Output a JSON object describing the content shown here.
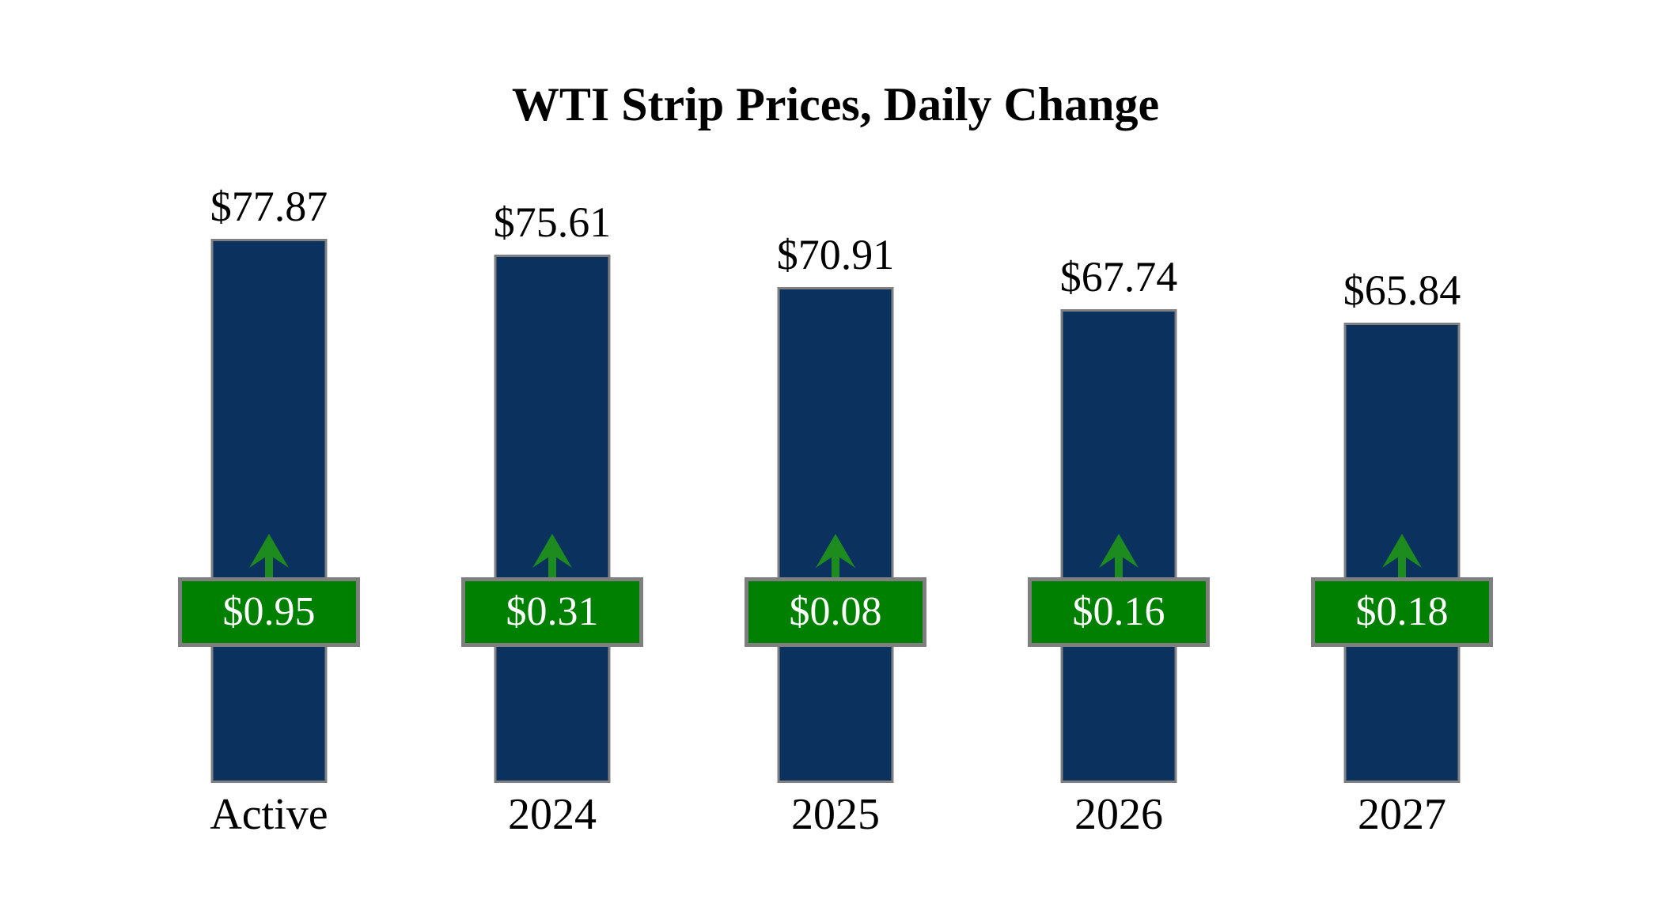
{
  "page": {
    "background": "#ffffff"
  },
  "chart_data": {
    "type": "bar",
    "title": "WTI Strip Prices, Daily Change",
    "categories": [
      "Active",
      "2024",
      "2025",
      "2026",
      "2027"
    ],
    "series": [
      {
        "name": "WTI strip price",
        "values": [
          77.87,
          75.61,
          70.91,
          67.74,
          65.84
        ],
        "labels": [
          "$77.87",
          "$75.61",
          "$70.91",
          "$67.74",
          "$65.84"
        ]
      },
      {
        "name": "Daily change",
        "values": [
          0.95,
          0.31,
          0.08,
          0.16,
          0.18
        ],
        "labels": [
          "$0.95",
          "$0.31",
          "$0.08",
          "$0.16",
          "$0.18"
        ],
        "direction": [
          "up",
          "up",
          "up",
          "up",
          "up"
        ]
      }
    ],
    "xlabel": "",
    "ylabel": "",
    "ylim": [
      0,
      88
    ],
    "grid": false,
    "legend_position": "none",
    "colors": {
      "bar_fill": "#0b315f",
      "bar_border": "#808080",
      "badge_fill": "#008000",
      "badge_border": "#7f7f7f",
      "badge_text": "#ffffff",
      "arrow": "#1e8b1e",
      "label_text": "#000000"
    }
  }
}
